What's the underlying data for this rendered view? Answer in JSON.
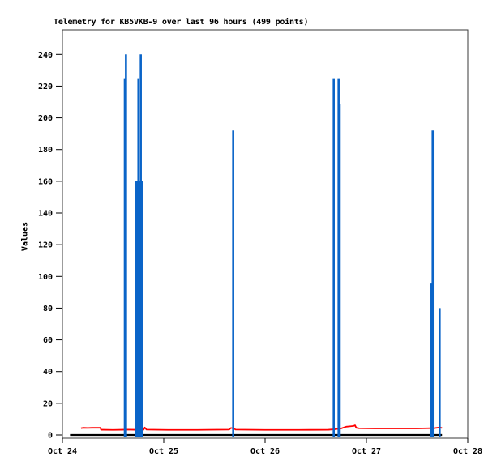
{
  "chart": {
    "title": "Telemetry for KB5VKB-9 over last 96 hours (499 points)",
    "y_axis_label": "Values"
  },
  "chart_data": {
    "type": "line",
    "title": "Telemetry for KB5VKB-9 over last 96 hours (499 points)",
    "xlabel": "",
    "ylabel": "Values",
    "x_unit": "hours from window start (Oct 24 00:00)",
    "xlim": [
      0,
      96
    ],
    "ylim": [
      0,
      240
    ],
    "grid": false,
    "legend": "none",
    "y_ticks": [
      0,
      20,
      40,
      60,
      80,
      100,
      120,
      140,
      160,
      180,
      200,
      220,
      240
    ],
    "x_ticks": [
      {
        "hour": 0,
        "label": "Oct 24"
      },
      {
        "hour": 24,
        "label": "Oct 25"
      },
      {
        "hour": 48,
        "label": "Oct 26"
      },
      {
        "hour": 72,
        "label": "Oct 27"
      },
      {
        "hour": 96,
        "label": "Oct 28"
      }
    ],
    "frame_color": "#3a3a3a",
    "text_color": "#000000",
    "series": [
      {
        "name": "red-telemetry-line",
        "type": "line",
        "color": "#ff0000",
        "width": 1.8,
        "points": [
          [
            4.4,
            4.3
          ],
          [
            5.0,
            4.5
          ],
          [
            6.0,
            4.4
          ],
          [
            7.0,
            4.5
          ],
          [
            9.0,
            4.5
          ],
          [
            9.15,
            3.3
          ],
          [
            12,
            3.2
          ],
          [
            14,
            3.3
          ],
          [
            15.5,
            3.4
          ],
          [
            17,
            3.3
          ],
          [
            19.2,
            3.3
          ],
          [
            19.5,
            4.7
          ],
          [
            19.9,
            3.4
          ],
          [
            25,
            3.2
          ],
          [
            32,
            3.2
          ],
          [
            39.5,
            3.4
          ],
          [
            39.9,
            4.4
          ],
          [
            40.5,
            4.2
          ],
          [
            41.0,
            3.4
          ],
          [
            48,
            3.2
          ],
          [
            56,
            3.2
          ],
          [
            63,
            3.3
          ],
          [
            64.5,
            3.6
          ],
          [
            66,
            4.1
          ],
          [
            67.2,
            5.2
          ],
          [
            68.3,
            5.5
          ],
          [
            69.0,
            5.7
          ],
          [
            69.3,
            6.1
          ],
          [
            69.6,
            4.5
          ],
          [
            70.2,
            4.2
          ],
          [
            74,
            4.1
          ],
          [
            79,
            4.1
          ],
          [
            84,
            4.1
          ],
          [
            86.5,
            4.2
          ],
          [
            88,
            4.3
          ],
          [
            89.3,
            4.7
          ],
          [
            89.9,
            4.4
          ]
        ]
      },
      {
        "name": "black-zero-baseline",
        "type": "line",
        "color": "#000000",
        "width": 2.2,
        "points": [
          [
            1.8,
            0
          ],
          [
            89.9,
            0
          ]
        ]
      },
      {
        "name": "blue-telemetry-impulses",
        "type": "impulse",
        "color": "#0a64c8",
        "width": 2.6,
        "points": [
          [
            14.78,
            225
          ],
          [
            15.05,
            240
          ],
          [
            17.5,
            160
          ],
          [
            17.72,
            160
          ],
          [
            17.94,
            160
          ],
          [
            18.0,
            225
          ],
          [
            18.16,
            160
          ],
          [
            18.38,
            160
          ],
          [
            18.56,
            240
          ],
          [
            18.62,
            160
          ],
          [
            18.8,
            160
          ],
          [
            40.45,
            192
          ],
          [
            64.26,
            225
          ],
          [
            65.41,
            225
          ],
          [
            65.66,
            209
          ],
          [
            87.42,
            96
          ],
          [
            87.69,
            192
          ],
          [
            89.34,
            80
          ]
        ]
      }
    ]
  }
}
